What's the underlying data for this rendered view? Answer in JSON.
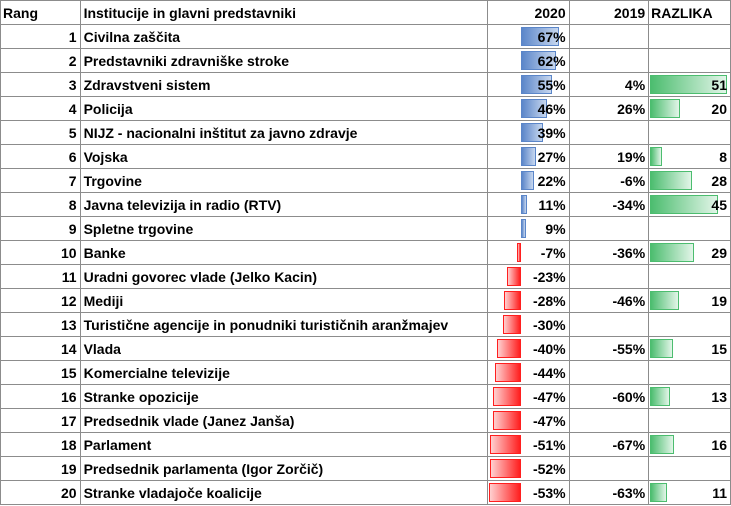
{
  "headers": {
    "rank": "Rang",
    "inst": "Institucije in glavni predstavniki",
    "y2020": "2020",
    "y2019": "2019",
    "diff": "RAZLIKA"
  },
  "colors": {
    "positive_bar": "#5b86c9",
    "negative_bar": "#ff1f1f",
    "difference_bar": "#4cbd6f"
  },
  "chart_data": {
    "type": "table",
    "columns": [
      "Rang",
      "Institucije in glavni predstavniki",
      "2020",
      "2019",
      "RAZLIKA"
    ],
    "rows": [
      {
        "rank": "1",
        "name": "Civilna zaščita",
        "v2020": 67,
        "t2020": "67%",
        "t2019": "",
        "diff": null,
        "tdiff": ""
      },
      {
        "rank": "2",
        "name": "Predstavniki zdravniške stroke",
        "v2020": 62,
        "t2020": "62%",
        "t2019": "",
        "diff": null,
        "tdiff": ""
      },
      {
        "rank": "3",
        "name": "Zdravstveni sistem",
        "v2020": 55,
        "t2020": "55%",
        "t2019": "4%",
        "diff": 51,
        "tdiff": "51"
      },
      {
        "rank": "4",
        "name": "Policija",
        "v2020": 46,
        "t2020": "46%",
        "t2019": "26%",
        "diff": 20,
        "tdiff": "20"
      },
      {
        "rank": "5",
        "name": "NIJZ - nacionalni inštitut za javno zdravje",
        "v2020": 39,
        "t2020": "39%",
        "t2019": "",
        "diff": null,
        "tdiff": ""
      },
      {
        "rank": "6",
        "name": "Vojska",
        "v2020": 27,
        "t2020": "27%",
        "t2019": "19%",
        "diff": 8,
        "tdiff": "8"
      },
      {
        "rank": "7",
        "name": "Trgovine",
        "v2020": 22,
        "t2020": "22%",
        "t2019": "-6%",
        "diff": 28,
        "tdiff": "28"
      },
      {
        "rank": "8",
        "name": "Javna televizija in radio (RTV)",
        "v2020": 11,
        "t2020": "11%",
        "t2019": "-34%",
        "diff": 45,
        "tdiff": "45"
      },
      {
        "rank": "9",
        "name": "Spletne trgovine",
        "v2020": 9,
        "t2020": "9%",
        "t2019": "",
        "diff": null,
        "tdiff": ""
      },
      {
        "rank": "10",
        "name": "Banke",
        "v2020": -7,
        "t2020": "-7%",
        "t2019": "-36%",
        "diff": 29,
        "tdiff": "29"
      },
      {
        "rank": "11",
        "name": "Uradni govorec vlade (Jelko Kacin)",
        "v2020": -23,
        "t2020": "-23%",
        "t2019": "",
        "diff": null,
        "tdiff": ""
      },
      {
        "rank": "12",
        "name": "Mediji",
        "v2020": -28,
        "t2020": "-28%",
        "t2019": "-46%",
        "diff": 19,
        "tdiff": "19"
      },
      {
        "rank": "13",
        "name": "Turistične agencije in ponudniki turističnih aranžmajev",
        "v2020": -30,
        "t2020": "-30%",
        "t2019": "",
        "diff": null,
        "tdiff": ""
      },
      {
        "rank": "14",
        "name": "Vlada",
        "v2020": -40,
        "t2020": "-40%",
        "t2019": "-55%",
        "diff": 15,
        "tdiff": "15"
      },
      {
        "rank": "15",
        "name": "Komercialne televizije",
        "v2020": -44,
        "t2020": "-44%",
        "t2019": "",
        "diff": null,
        "tdiff": ""
      },
      {
        "rank": "16",
        "name": "Stranke opozicije",
        "v2020": -47,
        "t2020": "-47%",
        "t2019": "-60%",
        "diff": 13,
        "tdiff": "13"
      },
      {
        "rank": "17",
        "name": "Predsednik vlade (Janez Janša)",
        "v2020": -47,
        "t2020": "-47%",
        "t2019": "",
        "diff": null,
        "tdiff": ""
      },
      {
        "rank": "18",
        "name": "Parlament",
        "v2020": -51,
        "t2020": "-51%",
        "t2019": "-67%",
        "diff": 16,
        "tdiff": "16"
      },
      {
        "rank": "19",
        "name": "Predsednik parlamenta (Igor Zorčič)",
        "v2020": -52,
        "t2020": "-52%",
        "t2019": "",
        "diff": null,
        "tdiff": ""
      },
      {
        "rank": "20",
        "name": "Stranke vladajoče koalicije",
        "v2020": -53,
        "t2020": "-53%",
        "t2019": "-63%",
        "diff": 11,
        "tdiff": "11"
      }
    ],
    "bar_range_2020": [
      -53,
      67
    ],
    "bar_range_diff": [
      0,
      51
    ]
  }
}
